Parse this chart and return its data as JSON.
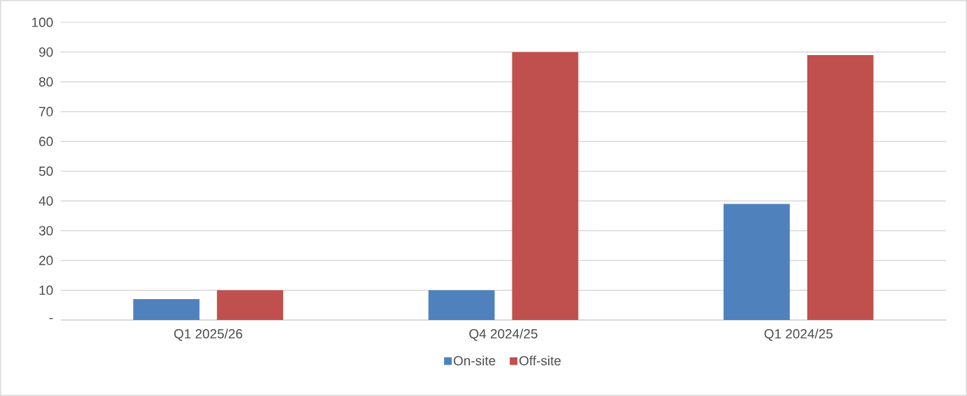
{
  "chart_data": {
    "type": "bar",
    "categories": [
      "Q1 2025/26",
      "Q4 2024/25",
      "Q1 2024/25"
    ],
    "series": [
      {
        "name": "On-site",
        "color": "#4f81bd",
        "values": [
          7,
          10,
          39
        ]
      },
      {
        "name": "Off-site",
        "color": "#c0504d",
        "values": [
          10,
          90,
          89
        ]
      }
    ],
    "ylim": [
      0,
      100
    ],
    "yticks": [
      {
        "value": 0,
        "label": "-"
      },
      10,
      20,
      30,
      40,
      50,
      60,
      70,
      80,
      90,
      100
    ],
    "grid": "y",
    "legend": "bottom"
  }
}
